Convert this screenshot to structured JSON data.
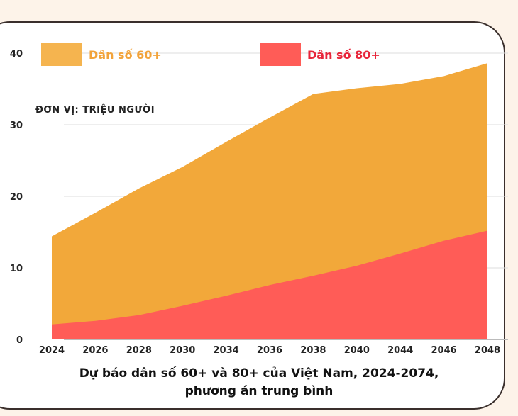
{
  "chart_data": {
    "type": "area",
    "title": "Dự báo dân số 60+ và 80+ của Việt Nam, 2024-2074, phương án trung bình",
    "title_lines": [
      "Dự báo dân số 60+ và 80+ của Việt Nam, 2024-2074,",
      "phương án trung bình"
    ],
    "unit_label": "ĐƠN VỊ: TRIỆU NGƯỜI",
    "categories": [
      "2024",
      "2026",
      "2028",
      "2030",
      "2034",
      "2036",
      "2038",
      "2040",
      "2044",
      "2046",
      "2048"
    ],
    "series": [
      {
        "name": "Dân số 60+",
        "color": "#f2a83a",
        "legend_color": "#f5b44f",
        "label_color": "#f2a33a",
        "values": [
          14.4,
          17.7,
          21.1,
          24.1,
          27.6,
          31.0,
          34.3,
          35.1,
          35.7,
          36.8,
          38.6
        ]
      },
      {
        "name": "Dân số 80+",
        "color": "#ff5c57",
        "legend_color": "#ff5c57",
        "label_color": "#e8253a",
        "values": [
          2.1,
          2.6,
          3.4,
          4.7,
          6.1,
          7.6,
          8.9,
          10.3,
          12.0,
          13.8,
          15.2
        ]
      }
    ],
    "ylim": [
      0,
      40
    ],
    "yticks": [
      0,
      10,
      20,
      30,
      40
    ],
    "grid": true,
    "legend_position": "top"
  }
}
